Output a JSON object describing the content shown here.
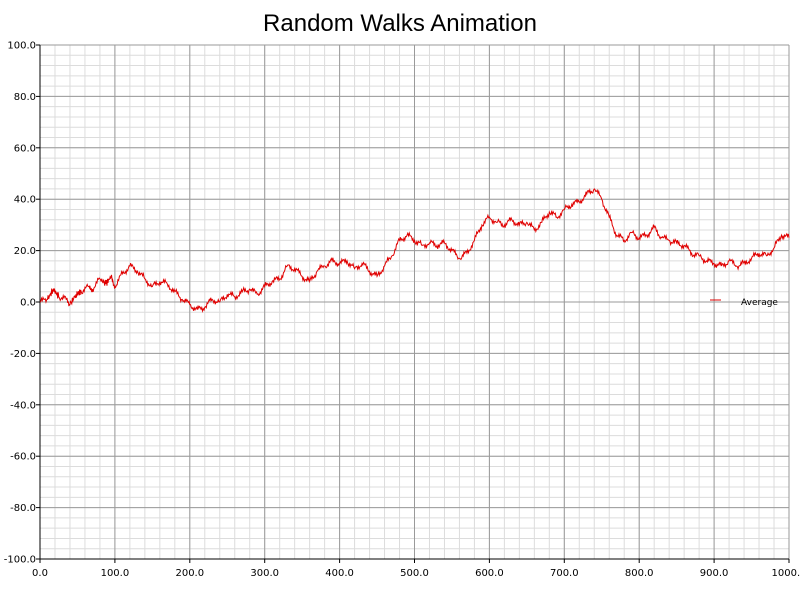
{
  "chart_data": {
    "type": "line",
    "title": "Random Walks Animation",
    "xlabel": "",
    "ylabel": "",
    "xlim": [
      0,
      1000
    ],
    "ylim": [
      -100,
      100
    ],
    "x_major_step": 100,
    "x_minor_step": 20,
    "y_major_step": 20,
    "y_minor_step": 4,
    "grid": true,
    "legend_position": "right",
    "x_tick_labels": [
      "0.0",
      "100.0",
      "200.0",
      "300.0",
      "400.0",
      "500.0",
      "600.0",
      "700.0",
      "800.0",
      "900.0",
      "1000.0"
    ],
    "y_tick_labels": [
      "100.0",
      "80.0",
      "60.0",
      "40.0",
      "20.0",
      "0.0",
      "-20.0",
      "-40.0",
      "-60.0",
      "-80.0",
      "-100.0"
    ],
    "series": [
      {
        "name": "Average",
        "color": "#e00000",
        "points": [
          [
            0,
            0
          ],
          [
            10,
            1
          ],
          [
            18,
            5
          ],
          [
            25,
            2
          ],
          [
            35,
            1
          ],
          [
            40,
            -1
          ],
          [
            48,
            3
          ],
          [
            55,
            4
          ],
          [
            65,
            6
          ],
          [
            70,
            5
          ],
          [
            80,
            9
          ],
          [
            88,
            7
          ],
          [
            95,
            10
          ],
          [
            100,
            6
          ],
          [
            110,
            11
          ],
          [
            120,
            14
          ],
          [
            130,
            12
          ],
          [
            140,
            9
          ],
          [
            150,
            6
          ],
          [
            160,
            8
          ],
          [
            170,
            7
          ],
          [
            180,
            4
          ],
          [
            190,
            1
          ],
          [
            200,
            -1
          ],
          [
            210,
            -3
          ],
          [
            220,
            -2
          ],
          [
            230,
            1
          ],
          [
            240,
            0
          ],
          [
            250,
            3
          ],
          [
            260,
            2
          ],
          [
            270,
            4
          ],
          [
            280,
            5
          ],
          [
            290,
            3
          ],
          [
            300,
            6
          ],
          [
            310,
            8
          ],
          [
            320,
            9
          ],
          [
            330,
            14
          ],
          [
            340,
            13
          ],
          [
            350,
            10
          ],
          [
            360,
            8
          ],
          [
            370,
            12
          ],
          [
            380,
            14
          ],
          [
            390,
            16
          ],
          [
            400,
            15
          ],
          [
            410,
            16
          ],
          [
            420,
            13
          ],
          [
            430,
            15
          ],
          [
            440,
            12
          ],
          [
            450,
            10
          ],
          [
            460,
            14
          ],
          [
            470,
            18
          ],
          [
            480,
            24
          ],
          [
            490,
            26
          ],
          [
            500,
            24
          ],
          [
            510,
            22
          ],
          [
            520,
            23
          ],
          [
            530,
            22
          ],
          [
            540,
            23
          ],
          [
            550,
            20
          ],
          [
            560,
            17
          ],
          [
            570,
            19
          ],
          [
            580,
            24
          ],
          [
            590,
            30
          ],
          [
            600,
            33
          ],
          [
            610,
            31
          ],
          [
            620,
            30
          ],
          [
            630,
            32
          ],
          [
            640,
            30
          ],
          [
            650,
            31
          ],
          [
            660,
            28
          ],
          [
            670,
            31
          ],
          [
            680,
            35
          ],
          [
            690,
            33
          ],
          [
            700,
            36
          ],
          [
            710,
            38
          ],
          [
            720,
            39
          ],
          [
            730,
            42
          ],
          [
            740,
            44
          ],
          [
            750,
            40
          ],
          [
            760,
            33
          ],
          [
            770,
            26
          ],
          [
            780,
            24
          ],
          [
            790,
            27
          ],
          [
            800,
            25
          ],
          [
            810,
            26
          ],
          [
            820,
            29
          ],
          [
            830,
            25
          ],
          [
            840,
            24
          ],
          [
            850,
            23
          ],
          [
            860,
            22
          ],
          [
            870,
            19
          ],
          [
            880,
            18
          ],
          [
            890,
            16
          ],
          [
            900,
            15
          ],
          [
            910,
            14
          ],
          [
            920,
            16
          ],
          [
            930,
            14
          ],
          [
            940,
            15
          ],
          [
            950,
            17
          ],
          [
            960,
            19
          ],
          [
            970,
            18
          ],
          [
            980,
            21
          ],
          [
            990,
            26
          ],
          [
            1000,
            25
          ]
        ]
      }
    ]
  }
}
